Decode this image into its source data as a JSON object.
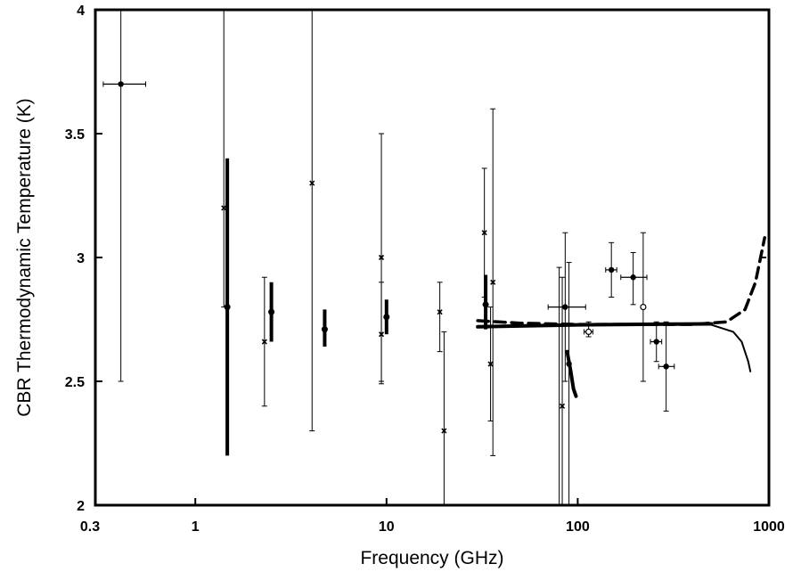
{
  "chart_data": {
    "type": "scatter",
    "title": "",
    "xlabel": "Frequency (GHz)",
    "ylabel": "CBR Thermodynamic Temperature (K)",
    "xscale": "log",
    "xlim": [
      0.3,
      1000
    ],
    "ylim": [
      2,
      4
    ],
    "grid": false,
    "legend": "none",
    "x_ticks": [
      {
        "value": 0.3,
        "label": "0.3"
      },
      {
        "value": 1,
        "label": "1"
      },
      {
        "value": 10,
        "label": "10"
      },
      {
        "value": 100,
        "label": "100"
      },
      {
        "value": 1000,
        "label": "1000"
      }
    ],
    "y_ticks": [
      {
        "value": 2,
        "label": "2"
      },
      {
        "value": 2.5,
        "label": "2.5"
      },
      {
        "value": 3,
        "label": "3"
      },
      {
        "value": 3.5,
        "label": "3.5"
      },
      {
        "value": 4,
        "label": "4"
      }
    ],
    "measurements": [
      {
        "x": 0.408,
        "y": 3.7,
        "ylo": 2.5,
        "yhi": 4.0,
        "xlo": 0.33,
        "xhi": 0.55,
        "marker": "dot",
        "bar": "thin"
      },
      {
        "x": 1.41,
        "y": 3.2,
        "ylo": 2.8,
        "yhi": 4.0,
        "marker": "x",
        "bar": "thin"
      },
      {
        "x": 1.47,
        "y": 2.8,
        "ylo": 2.2,
        "yhi": 3.4,
        "marker": "dot",
        "bar": "thick"
      },
      {
        "x": 2.3,
        "y": 2.66,
        "ylo": 2.4,
        "yhi": 2.92,
        "marker": "x",
        "bar": "thin"
      },
      {
        "x": 2.5,
        "y": 2.78,
        "ylo": 2.66,
        "yhi": 2.9,
        "marker": "dot",
        "bar": "thick"
      },
      {
        "x": 4.08,
        "y": 3.3,
        "ylo": 2.3,
        "yhi": 4.0,
        "marker": "x",
        "bar": "thin"
      },
      {
        "x": 4.75,
        "y": 2.71,
        "ylo": 2.64,
        "yhi": 2.79,
        "marker": "dot",
        "bar": "thick"
      },
      {
        "x": 9.4,
        "y": 3.0,
        "ylo": 2.5,
        "yhi": 3.5,
        "marker": "x",
        "bar": "thin"
      },
      {
        "x": 9.4,
        "y": 2.69,
        "ylo": 2.49,
        "yhi": 2.9,
        "marker": "x",
        "bar": "thin"
      },
      {
        "x": 10.0,
        "y": 2.76,
        "ylo": 2.69,
        "yhi": 2.83,
        "marker": "dot",
        "bar": "thick"
      },
      {
        "x": 19.0,
        "y": 2.78,
        "ylo": 2.62,
        "yhi": 2.9,
        "marker": "x",
        "bar": "thin"
      },
      {
        "x": 20.0,
        "y": 2.3,
        "ylo": 2.0,
        "yhi": 2.7,
        "marker": "x",
        "bar": "thin"
      },
      {
        "x": 32.5,
        "y": 3.1,
        "ylo": 2.84,
        "yhi": 3.36,
        "marker": "x",
        "bar": "thin"
      },
      {
        "x": 33.0,
        "y": 2.81,
        "ylo": 2.71,
        "yhi": 2.93,
        "marker": "dot",
        "bar": "thick"
      },
      {
        "x": 35.0,
        "y": 2.57,
        "ylo": 2.34,
        "yhi": 2.8,
        "marker": "x",
        "bar": "thin"
      },
      {
        "x": 36.0,
        "y": 2.9,
        "ylo": 2.2,
        "yhi": 3.6,
        "marker": "x",
        "bar": "thin"
      },
      {
        "x": 80.0,
        "y": 2.74,
        "ylo": 2.0,
        "yhi": 2.96,
        "marker": "none",
        "bar": "thin"
      },
      {
        "x": 83.0,
        "y": 2.4,
        "ylo": 2.0,
        "yhi": 2.92,
        "marker": "x",
        "bar": "thin"
      },
      {
        "x": 86.0,
        "y": 2.8,
        "ylo": 2.5,
        "yhi": 3.1,
        "xlo": 70.0,
        "xhi": 110.0,
        "marker": "dot",
        "bar": "thin"
      },
      {
        "x": 90.0,
        "y": 2.57,
        "ylo": 2.0,
        "yhi": 2.98,
        "marker": "dot",
        "bar": "thin"
      },
      {
        "x": 114.0,
        "y": 2.7,
        "ylo": 2.68,
        "yhi": 2.74,
        "xlo": 108.0,
        "xhi": 120.0,
        "marker": "open",
        "bar": "thin"
      },
      {
        "x": 150.0,
        "y": 2.95,
        "ylo": 2.84,
        "yhi": 3.06,
        "xlo": 140.0,
        "xhi": 160.0,
        "marker": "dot",
        "bar": "thin"
      },
      {
        "x": 195.0,
        "y": 2.92,
        "ylo": 2.81,
        "yhi": 3.02,
        "xlo": 168.0,
        "xhi": 230.0,
        "marker": "dot",
        "bar": "thin"
      },
      {
        "x": 220.0,
        "y": 2.8,
        "ylo": 2.5,
        "yhi": 3.1,
        "marker": "open",
        "bar": "thin"
      },
      {
        "x": 258.0,
        "y": 2.66,
        "ylo": 2.58,
        "yhi": 2.74,
        "xlo": 240.0,
        "xhi": 275.0,
        "marker": "dot",
        "bar": "thin"
      },
      {
        "x": 290.0,
        "y": 2.56,
        "ylo": 2.38,
        "yhi": 2.74,
        "xlo": 265.0,
        "xhi": 320.0,
        "marker": "dot",
        "bar": "thin"
      }
    ],
    "curves": [
      {
        "name": "",
        "style": "solid-thick",
        "points": [
          [
            30,
            2.72
          ],
          [
            100,
            2.728
          ],
          [
            300,
            2.731
          ],
          [
            500,
            2.732
          ]
        ]
      },
      {
        "name": "",
        "style": "dashed-thick",
        "points": [
          [
            30,
            2.745
          ],
          [
            50,
            2.735
          ],
          [
            100,
            2.73
          ],
          [
            400,
            2.73
          ],
          [
            600,
            2.74
          ],
          [
            750,
            2.79
          ],
          [
            850,
            2.9
          ],
          [
            950,
            3.08
          ]
        ]
      },
      {
        "name": "",
        "style": "solid",
        "points": [
          [
            500,
            2.728
          ],
          [
            650,
            2.7
          ],
          [
            720,
            2.66
          ],
          [
            780,
            2.58
          ],
          [
            800,
            2.54
          ]
        ]
      },
      {
        "name": "",
        "style": "solid-thick",
        "points": [
          [
            88,
            2.62
          ],
          [
            92,
            2.54
          ],
          [
            95,
            2.47
          ],
          [
            98,
            2.44
          ]
        ]
      },
      {
        "name": "",
        "style": "solid",
        "points": [
          [
            900,
            3.0
          ],
          [
            960,
            3.0
          ]
        ]
      }
    ]
  }
}
